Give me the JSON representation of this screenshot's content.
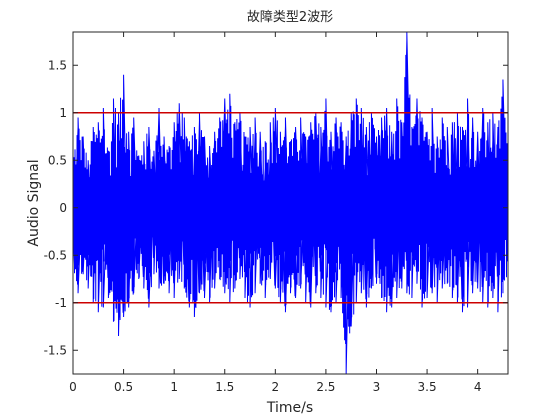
{
  "chart_data": {
    "type": "line",
    "title": "故障类型2波形",
    "xlabel": "Time/s",
    "ylabel": "Audio Signal",
    "xlim": [
      0,
      4.3
    ],
    "ylim": [
      -1.75,
      1.85
    ],
    "xticks": [
      0,
      0.5,
      1,
      1.5,
      2,
      2.5,
      3,
      3.5,
      4
    ],
    "xtick_labels": [
      "0",
      "0.5",
      "1",
      "1.5",
      "2",
      "2.5",
      "3",
      "3.5",
      "4"
    ],
    "yticks": [
      -1.5,
      -1,
      -0.5,
      0,
      0.5,
      1,
      1.5
    ],
    "ytick_labels": [
      "-1.5",
      "-1",
      "-0.5",
      "0",
      "0.5",
      "1",
      "1.5"
    ],
    "grid": false,
    "series": [
      {
        "color": "#0000ff",
        "x": [
          0,
          0.05,
          0.1,
          0.15,
          0.2,
          0.25,
          0.3,
          0.35,
          0.4,
          0.45,
          0.5,
          0.55,
          0.6,
          0.65,
          0.7,
          0.75,
          0.8,
          0.85,
          0.9,
          0.95,
          1.0,
          1.05,
          1.1,
          1.15,
          1.2,
          1.25,
          1.3,
          1.35,
          1.4,
          1.45,
          1.5,
          1.55,
          1.6,
          1.65,
          1.7,
          1.75,
          1.8,
          1.85,
          1.9,
          1.95,
          2.0,
          2.05,
          2.1,
          2.15,
          2.2,
          2.25,
          2.3,
          2.35,
          2.4,
          2.45,
          2.5,
          2.55,
          2.6,
          2.65,
          2.7,
          2.75,
          2.8,
          2.85,
          2.9,
          2.95,
          3.0,
          3.05,
          3.1,
          3.15,
          3.2,
          3.25,
          3.3,
          3.35,
          3.4,
          3.45,
          3.5,
          3.55,
          3.6,
          3.65,
          3.7,
          3.75,
          3.8,
          3.85,
          3.9,
          3.95,
          4.0,
          4.05,
          4.1,
          4.15,
          4.2,
          4.25,
          4.3
        ],
        "y_max": [
          0.55,
          0.95,
          0.75,
          0.5,
          0.85,
          0.9,
          1.05,
          0.6,
          1.15,
          1.0,
          1.4,
          0.8,
          0.95,
          0.55,
          0.7,
          0.85,
          0.6,
          1.05,
          0.75,
          0.65,
          0.9,
          1.1,
          0.95,
          0.7,
          0.85,
          1.0,
          0.75,
          0.65,
          0.8,
          0.95,
          1.15,
          1.2,
          0.9,
          1.0,
          0.75,
          0.85,
          0.95,
          0.8,
          0.7,
          0.9,
          1.05,
          0.8,
          0.95,
          0.7,
          0.85,
          0.95,
          0.75,
          0.9,
          1.0,
          0.85,
          1.15,
          0.8,
          0.95,
          0.9,
          0.75,
          1.0,
          1.15,
          1.05,
          0.85,
          1.0,
          0.75,
          0.95,
          1.05,
          0.8,
          1.15,
          0.9,
          1.85,
          0.85,
          1.15,
          0.95,
          0.8,
          1.05,
          0.75,
          0.95,
          0.85,
          0.9,
          1.0,
          0.85,
          1.15,
          0.95,
          0.8,
          1.05,
          0.9,
          1.0,
          0.85,
          1.35,
          0.7
        ],
        "y_min": [
          -0.6,
          -0.9,
          -0.7,
          -0.85,
          -1.0,
          -1.1,
          -1.05,
          -0.95,
          -1.2,
          -1.35,
          -1.15,
          -1.05,
          -0.9,
          -0.75,
          -0.85,
          -1.05,
          -0.7,
          -0.85,
          -0.8,
          -0.9,
          -0.95,
          -0.75,
          -0.85,
          -1.05,
          -1.15,
          -0.9,
          -0.95,
          -1.0,
          -0.85,
          -0.75,
          -0.9,
          -1.0,
          -0.85,
          -0.75,
          -0.95,
          -1.05,
          -0.9,
          -0.8,
          -0.95,
          -0.75,
          -0.85,
          -1.0,
          -1.1,
          -0.9,
          -0.95,
          -0.85,
          -1.0,
          -1.05,
          -0.9,
          -0.95,
          -1.05,
          -1.1,
          -1.0,
          -0.95,
          -1.75,
          -1.25,
          -1.0,
          -0.9,
          -1.05,
          -0.85,
          -0.8,
          -0.95,
          -1.1,
          -1.05,
          -0.95,
          -0.85,
          -0.9,
          -0.95,
          -0.8,
          -1.05,
          -0.95,
          -0.9,
          -1.0,
          -0.85,
          -0.8,
          -0.95,
          -1.0,
          -1.1,
          -1.05,
          -0.9,
          -0.85,
          -1.0,
          -1.05,
          -0.95,
          -1.1,
          -0.9,
          -0.75
        ]
      }
    ],
    "reference_lines": [
      {
        "y": 1,
        "color": "#cc0000"
      },
      {
        "y": -1,
        "color": "#cc0000"
      }
    ],
    "colors": {
      "signal": "#0000ff",
      "threshold": "#cc0000",
      "axes": "#262626",
      "background": "#ffffff"
    }
  }
}
